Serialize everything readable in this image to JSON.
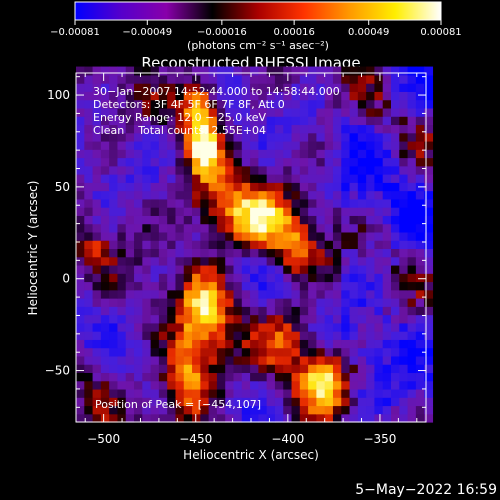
{
  "chart_data": {
    "type": "heatmap",
    "title": "Reconstructed RHESSI Image",
    "xlabel": "Heliocentric X (arcsec)",
    "ylabel": "Heliocentric Y (arcsec)",
    "xlim": [
      -515,
      -325
    ],
    "ylim": [
      -78,
      112
    ],
    "x_ticks": [
      -500,
      -450,
      -400,
      -350
    ],
    "x_tick_labels": [
      "−500",
      "−450",
      "−400",
      "−350"
    ],
    "y_ticks": [
      -50,
      0,
      50,
      100
    ],
    "y_tick_labels": [
      "−50",
      "0",
      "50",
      "100"
    ],
    "colorbar": {
      "range": [
        -0.00081,
        0.00081
      ],
      "ticks": [
        -0.00081,
        -0.00049,
        -0.00016,
        0.00016,
        0.00049,
        0.00081
      ],
      "tick_labels": [
        "−0.00081",
        "−0.00049",
        "−0.00016",
        "0.00016",
        "0.00049",
        "0.00081"
      ],
      "units_label": "(photons cm⁻² s⁻¹ asec⁻²)",
      "colors": [
        "#0000ff",
        "#5500cc",
        "#8800aa",
        "#000000",
        "#aa0000",
        "#ff3300",
        "#ff9900",
        "#ffee00",
        "#ffffff"
      ]
    },
    "annotations": [
      "30−Jan−2007 14:52:44.000 to 14:58:44.000",
      "Detectors: 3F 4F 5F 6F 7F 8F, Att 0",
      "Energy Range: 12.0 − 25.0 keV",
      "Clean    Total counts: 2.55E+04"
    ],
    "peak_label": "Position of Peak = [−454,107]",
    "peak": [
      -454,
      107
    ],
    "source_regions": [
      {
        "x": -448,
        "y": 95,
        "sx": 7,
        "sy": 14,
        "amp": 1.0
      },
      {
        "x": -445,
        "y": 68,
        "sx": 6,
        "sy": 10,
        "amp": 0.8
      },
      {
        "x": -440,
        "y": 40,
        "sx": 14,
        "sy": 12,
        "amp": 0.7
      },
      {
        "x": -415,
        "y": 30,
        "sx": 14,
        "sy": 12,
        "amp": 0.9
      },
      {
        "x": -395,
        "y": 15,
        "sx": 8,
        "sy": 10,
        "amp": 0.65
      },
      {
        "x": -445,
        "y": -20,
        "sx": 10,
        "sy": 18,
        "amp": 0.9
      },
      {
        "x": -455,
        "y": -55,
        "sx": 10,
        "sy": 16,
        "amp": 0.95
      },
      {
        "x": -400,
        "y": -30,
        "sx": 10,
        "sy": 12,
        "amp": 0.6
      },
      {
        "x": -380,
        "y": -55,
        "sx": 10,
        "sy": 12,
        "amp": 0.95
      },
      {
        "x": -505,
        "y": 15,
        "sx": 5,
        "sy": 6,
        "amp": 0.5
      }
    ]
  },
  "footer": {
    "timestamp": "5−May−2022 16:59"
  }
}
